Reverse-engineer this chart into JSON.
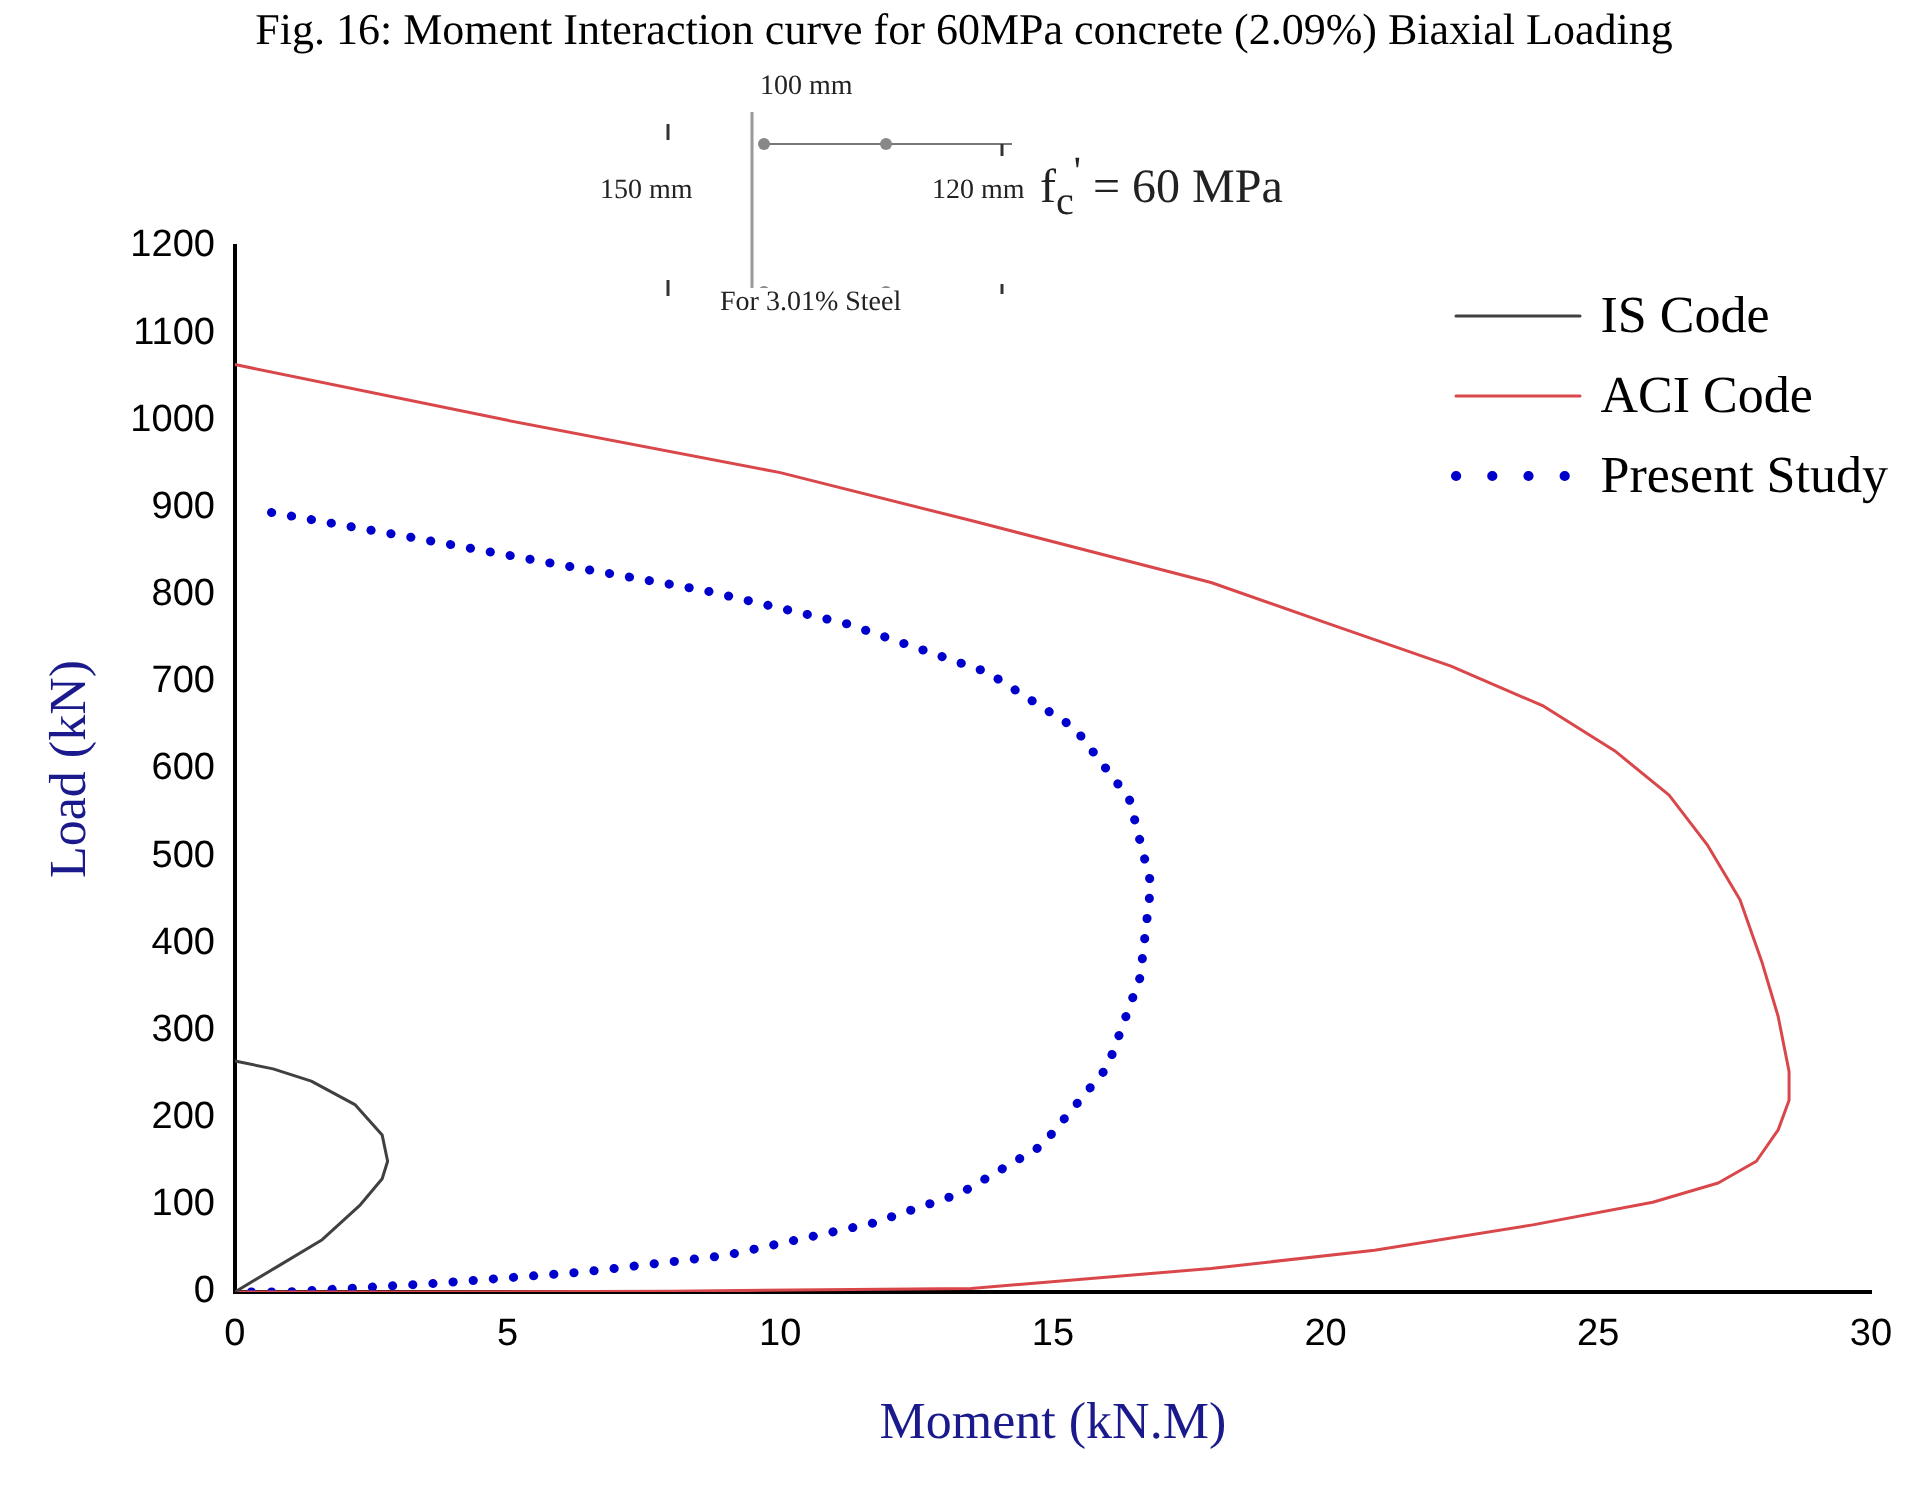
{
  "chart_data": {
    "type": "line",
    "title": "Fig. 16: Moment Interaction curve for 60MPa concrete (2.09%) Biaxial Loading",
    "xlabel": "Moment (kN.M)",
    "ylabel": "Load (kN)",
    "xlim": [
      0,
      30
    ],
    "xticks": [
      0,
      5,
      10,
      15,
      20,
      25,
      30
    ],
    "ylim": [
      0,
      1200
    ],
    "yticks": [
      0,
      100,
      200,
      300,
      400,
      500,
      600,
      700,
      800,
      900,
      1000,
      1100,
      1200
    ],
    "grid": false,
    "legend": "top right",
    "marker": "none",
    "annotations": [
      "100 mm",
      "150 mm",
      "120 mm",
      "For 3.01% Steel",
      "f$_{c}$$^{'}$ = 60 MPa"
    ],
    "series": [
      {
        "name": "IS Code",
        "color": "#404040",
        "line_style": "solid",
        "x": [
          0,
          0.8,
          1.6,
          2.3,
          2.7,
          2.8,
          2.7,
          2.2,
          1.4,
          0.7,
          0
        ],
        "values": [
          0,
          30,
          60,
          100,
          130,
          150,
          180,
          215,
          242,
          256,
          265
        ]
      },
      {
        "name": "ACI Code",
        "color": "#d9474b",
        "line_style": "solid",
        "x": [
          0,
          3,
          8,
          13.5,
          17.9,
          20.9,
          23.8,
          26,
          27.2,
          27.9,
          28.3,
          28.5,
          28.5,
          28.3,
          28,
          27.6,
          27,
          26.3,
          25.3,
          24,
          22.3,
          20,
          17.9,
          13.5,
          10,
          5,
          0
        ],
        "values": [
          0,
          0,
          1,
          4,
          27,
          48,
          77,
          103,
          125,
          150,
          186,
          220,
          253,
          316,
          379,
          450,
          513,
          570,
          621,
          672,
          718,
          768,
          814,
          885,
          940,
          1000,
          1064
        ]
      },
      {
        "name": "Present Study",
        "color": "#0000cc",
        "line_style": "dotted",
        "x": [
          0.3,
          0.95,
          3.7,
          6.4,
          9,
          11.7,
          13.3,
          14.8,
          16,
          16.6,
          16.8,
          16.4,
          15.4,
          13.8,
          11.2,
          8.6,
          5.9,
          3.3,
          0.6
        ],
        "values": [
          0,
          0,
          10,
          23,
          42,
          79,
          113,
          168,
          258,
          361,
          468,
          566,
          647,
          711,
          767,
          805,
          835,
          865,
          895
        ]
      }
    ]
  }
}
